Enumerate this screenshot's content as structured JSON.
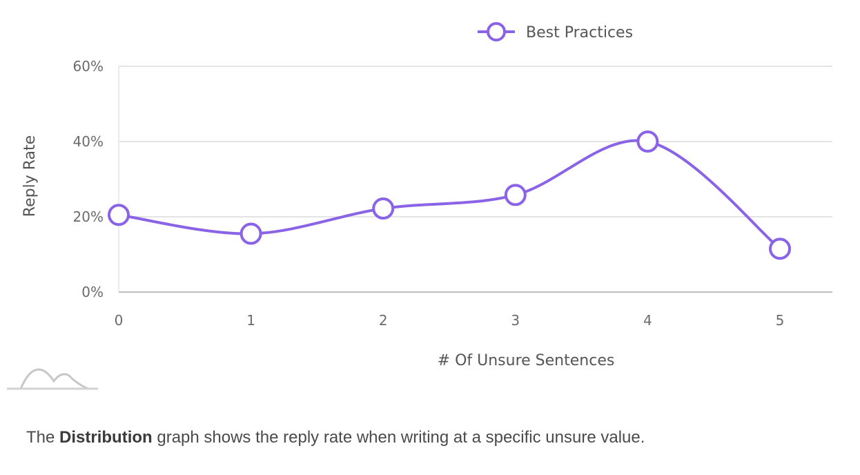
{
  "chart_data": {
    "type": "line",
    "x": [
      0,
      1,
      2,
      3,
      4,
      5
    ],
    "series": [
      {
        "name": "Best Practices",
        "values": [
          20.5,
          15.5,
          22.2,
          25.8,
          40.0,
          11.5
        ]
      }
    ],
    "xlabel": "# Of Unsure Sentences",
    "ylabel": "Reply Rate",
    "ylim": [
      0,
      60
    ],
    "yticks": [
      "0%",
      "20%",
      "40%",
      "60%"
    ],
    "xticks": [
      "0",
      "1",
      "2",
      "3",
      "4",
      "5"
    ],
    "grid": true,
    "legend": "top-center",
    "line_color": "#8a63e6"
  },
  "caption": {
    "prefix": "The ",
    "bold": "Distribution",
    "suffix": " graph shows the reply rate when writing at a specific unsure value."
  }
}
